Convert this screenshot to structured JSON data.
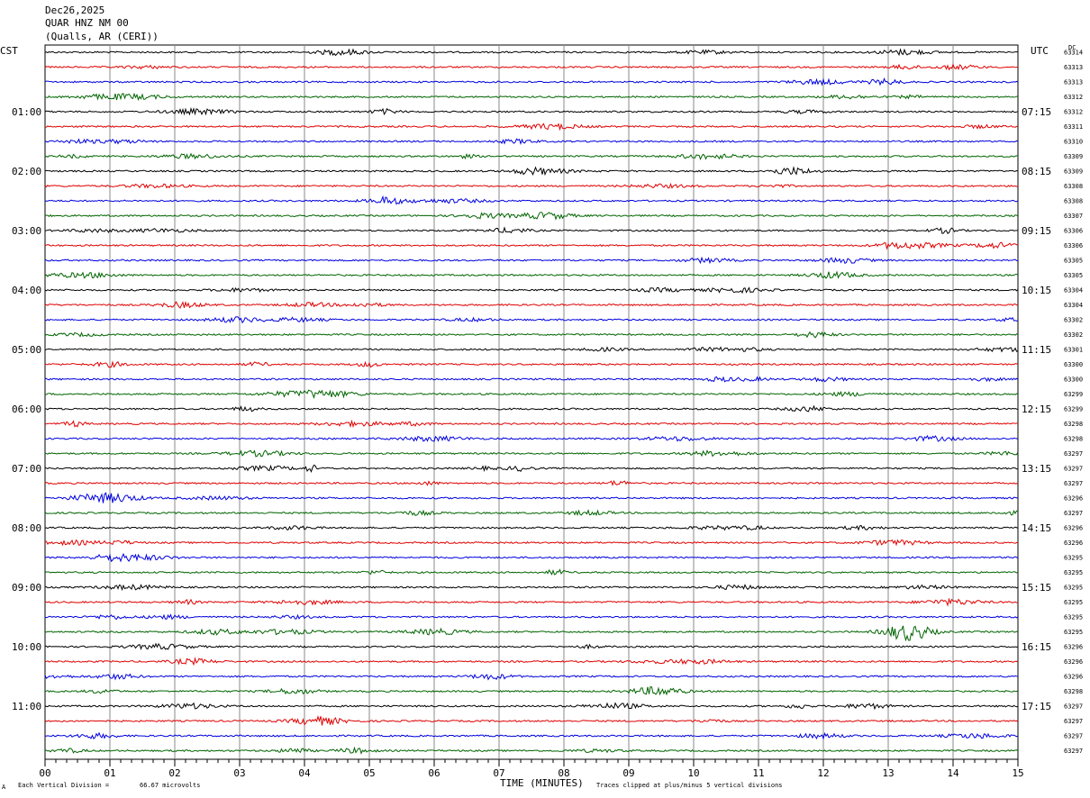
{
  "header": {
    "date": "Dec26,2025",
    "station": "QUAR HNZ NM 00",
    "location": "(Qualls, AR (CERI))"
  },
  "left_timezone": "CST",
  "right_timezone": "UTC",
  "dc_label": "DC",
  "footer": {
    "scale_prefix": "Each Vertical Division =",
    "scale_value": "66.67 microvolts",
    "clip_note": "Traces clipped at plus/minus 5 vertical divisions",
    "corner_mark": "A"
  },
  "chart_data": {
    "type": "line",
    "xlabel": "TIME (MINUTES)",
    "x_ticks": [
      "00",
      "01",
      "02",
      "03",
      "04",
      "05",
      "06",
      "07",
      "08",
      "09",
      "10",
      "11",
      "12",
      "13",
      "14",
      "15"
    ],
    "xlim": [
      0,
      15
    ],
    "trace_colors": [
      "#000000",
      "#e00000",
      "#0000e0",
      "#006400"
    ],
    "left_hour_labels": [
      "01:00",
      "02:00",
      "03:00",
      "04:00",
      "05:00",
      "06:00",
      "07:00",
      "08:00",
      "09:00",
      "10:00",
      "11:00"
    ],
    "right_hour_labels": [
      "07:15",
      "08:15",
      "09:15",
      "10:15",
      "11:15",
      "12:15",
      "13:15",
      "14:15",
      "15:15",
      "16:15",
      "17:15"
    ],
    "dc_offsets": [
      "63314",
      "63313",
      "63313",
      "63312",
      "63312",
      "63311",
      "63310",
      "63309",
      "63309",
      "63308",
      "63308",
      "63307",
      "63306",
      "63306",
      "63305",
      "63305",
      "63304",
      "63304",
      "63302",
      "63302",
      "63301",
      "63300",
      "63300",
      "63299",
      "63299",
      "63298",
      "63298",
      "63297",
      "63297",
      "63297",
      "63296",
      "63297",
      "63296",
      "63296",
      "63295",
      "63295",
      "63295",
      "63295",
      "63295",
      "63295",
      "63296",
      "63296",
      "63296",
      "63298",
      "63297",
      "63297",
      "63297",
      "63297"
    ],
    "events": [
      {
        "trace": 39,
        "minute": 13.3,
        "amplitude": "large"
      },
      {
        "trace": 28,
        "minute": 4.1,
        "amplitude": "small"
      }
    ]
  }
}
